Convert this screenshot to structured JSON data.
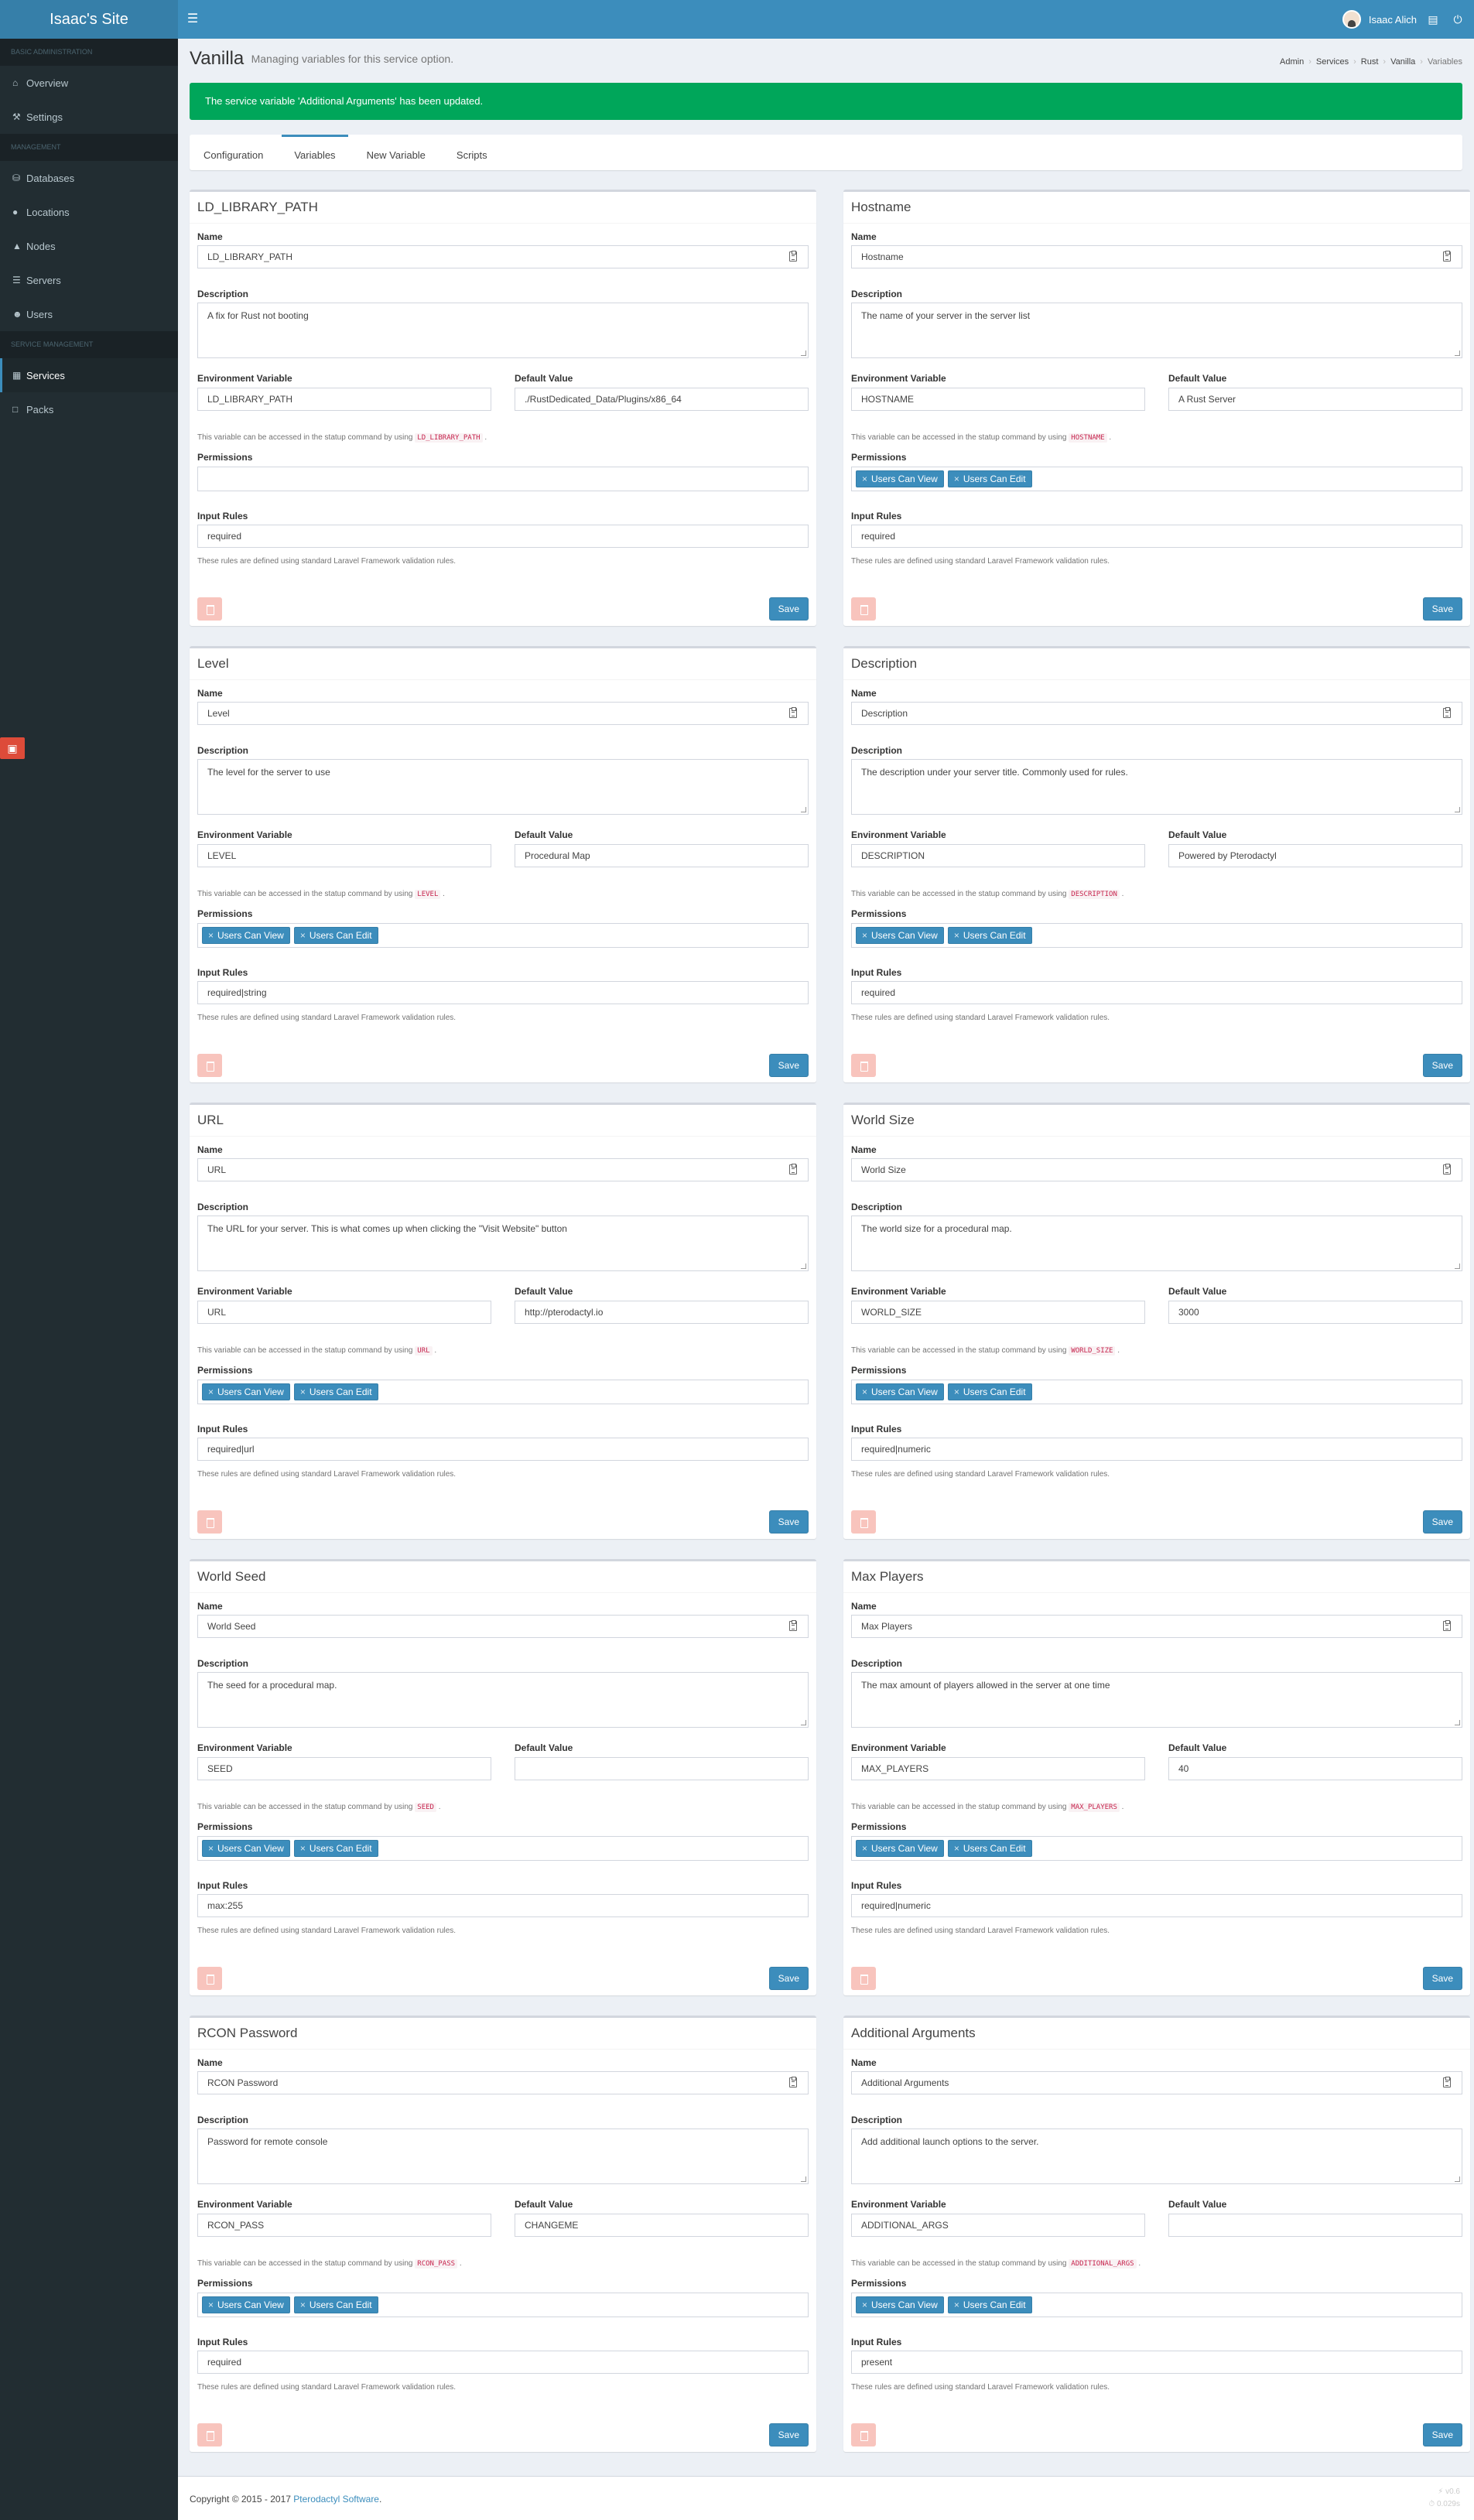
{
  "app": {
    "title": "Isaac's Site",
    "user_name": "Isaac Alich"
  },
  "sidebar": {
    "sections": [
      {
        "header": "Basic Administration",
        "items": [
          {
            "label": "Overview",
            "icon": "home-icon"
          },
          {
            "label": "Settings",
            "icon": "wrench-icon"
          }
        ]
      },
      {
        "header": "Management",
        "items": [
          {
            "label": "Databases",
            "icon": "database-icon"
          },
          {
            "label": "Locations",
            "icon": "globe-icon"
          },
          {
            "label": "Nodes",
            "icon": "sitemap-icon"
          },
          {
            "label": "Servers",
            "icon": "server-icon"
          },
          {
            "label": "Users",
            "icon": "users-icon"
          }
        ]
      },
      {
        "header": "Service Management",
        "items": [
          {
            "label": "Services",
            "icon": "th-large-icon",
            "active": true
          },
          {
            "label": "Packs",
            "icon": "archive-icon"
          }
        ]
      }
    ]
  },
  "header": {
    "title": "Vanilla",
    "subtitle": "Managing variables for this service option.",
    "breadcrumb": [
      "Admin",
      "Services",
      "Rust",
      "Vanilla",
      "Variables"
    ]
  },
  "alert": {
    "message": "The service variable 'Additional Arguments' has been updated."
  },
  "tabs": [
    {
      "label": "Configuration"
    },
    {
      "label": "Variables",
      "active": true
    },
    {
      "label": "New Variable"
    },
    {
      "label": "Scripts"
    }
  ],
  "labels": {
    "name": "Name",
    "description": "Description",
    "env_var": "Environment Variable",
    "default_value": "Default Value",
    "permissions": "Permissions",
    "input_rules": "Input Rules",
    "rules_help": "These rules are defined using standard Laravel Framework validation rules.",
    "startup_help_prefix": "This variable can be accessed in the statup command by using",
    "startup_help_suffix": ".",
    "save": "Save",
    "remove_tag": "×"
  },
  "variables": [
    {
      "title": "LD_LIBRARY_PATH",
      "name": "LD_LIBRARY_PATH",
      "description": "A fix for Rust not booting",
      "env": "LD_LIBRARY_PATH",
      "default": "./RustDedicated_Data/Plugins/x86_64",
      "permissions": [],
      "rules": "required"
    },
    {
      "title": "Hostname",
      "name": "Hostname",
      "description": "The name of your server in the server list",
      "env": "HOSTNAME",
      "default": "A Rust Server",
      "permissions": [
        "Users Can View",
        "Users Can Edit"
      ],
      "rules": "required"
    },
    {
      "title": "Level",
      "name": "Level",
      "description": "The level for the server to use",
      "env": "LEVEL",
      "default": "Procedural Map",
      "permissions": [
        "Users Can View",
        "Users Can Edit"
      ],
      "rules": "required|string"
    },
    {
      "title": "Description",
      "name": "Description",
      "description": "The description under your server title. Commonly used for rules.",
      "env": "DESCRIPTION",
      "default": "Powered by Pterodactyl",
      "permissions": [
        "Users Can View",
        "Users Can Edit"
      ],
      "rules": "required"
    },
    {
      "title": "URL",
      "name": "URL",
      "description": "The URL for your server. This is what comes up when clicking the \"Visit Website\" button",
      "env": "URL",
      "default": "http://pterodactyl.io",
      "permissions": [
        "Users Can View",
        "Users Can Edit"
      ],
      "rules": "required|url"
    },
    {
      "title": "World Size",
      "name": "World Size",
      "description": "The world size for a procedural map.",
      "env": "WORLD_SIZE",
      "default": "3000",
      "permissions": [
        "Users Can View",
        "Users Can Edit"
      ],
      "rules": "required|numeric"
    },
    {
      "title": "World Seed",
      "name": "World Seed",
      "description": "The seed for a procedural map.",
      "env": "SEED",
      "default": "",
      "permissions": [
        "Users Can View",
        "Users Can Edit"
      ],
      "rules": "max:255"
    },
    {
      "title": "Max Players",
      "name": "Max Players",
      "description": "The max amount of players allowed in the server at one time",
      "env": "MAX_PLAYERS",
      "default": "40",
      "permissions": [
        "Users Can View",
        "Users Can Edit"
      ],
      "rules": "required|numeric"
    },
    {
      "title": "RCON Password",
      "name": "RCON Password",
      "description": "Password for remote console",
      "env": "RCON_PASS",
      "default": "CHANGEME",
      "permissions": [
        "Users Can View",
        "Users Can Edit"
      ],
      "rules": "required"
    },
    {
      "title": "Additional Arguments",
      "name": "Additional Arguments",
      "description": "Add additional launch options to the server.",
      "env": "ADDITIONAL_ARGS",
      "default": "",
      "permissions": [
        "Users Can View",
        "Users Can Edit"
      ],
      "rules": "present"
    }
  ],
  "footer": {
    "copyright": "Copyright © 2015 - 2017",
    "company": "Pterodactyl Software",
    "period": ".",
    "version": "v0.6",
    "time": "0.029s"
  },
  "colors": {
    "primary": "#3c8dbc",
    "success": "#00a65a",
    "sidebar": "#222d32",
    "danger_light": "#f8c4bd"
  }
}
